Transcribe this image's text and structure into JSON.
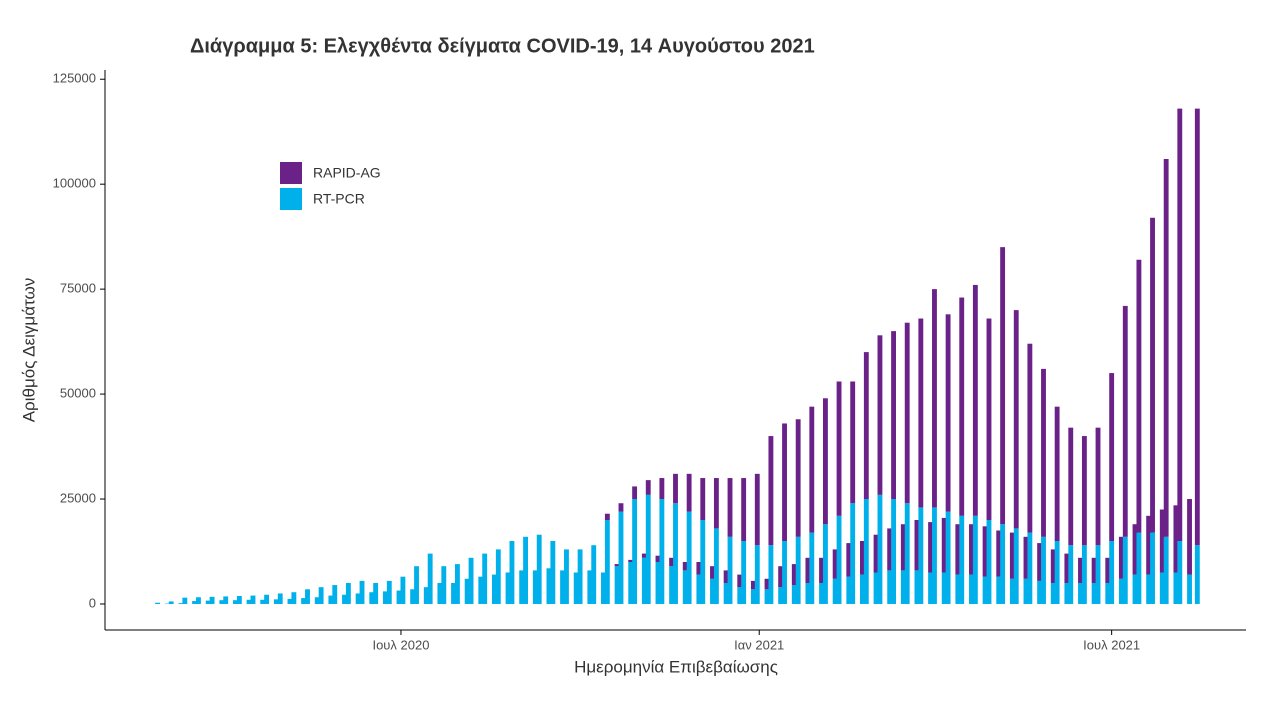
{
  "chart_data": {
    "type": "stacked_bar",
    "title": "Διάγραμμα 5: Ελεγχθέντα δείγματα COVID-19, 14 Αυγούστου 2021",
    "x_label": "Ημερομηνία Επιβεβαίωσης",
    "y_label": "Αριθμός Δειγμάτων",
    "xlim": [
      30,
      616
    ],
    "xticks": [
      {
        "value": 182,
        "label": "Ιουλ 2020"
      },
      {
        "value": 366,
        "label": "Ιαν 2021"
      },
      {
        "value": 547,
        "label": "Ιουλ 2021"
      }
    ],
    "ylim": [
      -6200,
      127200
    ],
    "yticks": [
      0,
      25000,
      50000,
      75000,
      100000,
      125000
    ],
    "legend": "upper left",
    "x": [
      57,
      62,
      64,
      69,
      71,
      76,
      78,
      83,
      85,
      90,
      92,
      97,
      99,
      104,
      106,
      111,
      113,
      118,
      120,
      125,
      127,
      132,
      134,
      139,
      141,
      146,
      148,
      153,
      155,
      160,
      162,
      167,
      169,
      174,
      176,
      181,
      183,
      188,
      190,
      195,
      197,
      202,
      204,
      209,
      211,
      216,
      218,
      223,
      225,
      230,
      232,
      237,
      239,
      244,
      246,
      251,
      253,
      258,
      260,
      265,
      267,
      272,
      274,
      279,
      281,
      286,
      288,
      293,
      295,
      300,
      302,
      307,
      309,
      314,
      316,
      321,
      323,
      328,
      330,
      335,
      337,
      342,
      344,
      349,
      351,
      356,
      358,
      363,
      365,
      370,
      372,
      377,
      379,
      384,
      386,
      391,
      393,
      398,
      400,
      405,
      407,
      412,
      414,
      419,
      421,
      426,
      428,
      433,
      435,
      440,
      442,
      447,
      449,
      454,
      456,
      461,
      463,
      468,
      470,
      475,
      477,
      482,
      484,
      489,
      491,
      496,
      498,
      503,
      505,
      510,
      512,
      517,
      519,
      524,
      526,
      531,
      533,
      538,
      540,
      545,
      547,
      552,
      554,
      559,
      561,
      566,
      568,
      573,
      575,
      580,
      582,
      587,
      591
    ],
    "series": [
      {
        "name": "RT-PCR",
        "color": "#00b0eb",
        "values": [
          300,
          100,
          600,
          200,
          1500,
          700,
          1600,
          800,
          1700,
          900,
          1800,
          900,
          1900,
          1000,
          2000,
          1000,
          2200,
          1100,
          2500,
          1200,
          2800,
          1400,
          3500,
          1600,
          4000,
          2000,
          4500,
          2200,
          5000,
          2500,
          5500,
          2800,
          5000,
          3000,
          5500,
          3200,
          6500,
          3500,
          9000,
          4000,
          12000,
          5000,
          9000,
          5000,
          9500,
          6000,
          11000,
          6500,
          12000,
          7000,
          13000,
          7500,
          15000,
          8000,
          16000,
          8000,
          16500,
          8500,
          15000,
          8000,
          13000,
          7500,
          13000,
          8000,
          14000,
          7500,
          20000,
          9000,
          22000,
          10000,
          25000,
          11000,
          26000,
          10000,
          25000,
          9000,
          24000,
          8000,
          22000,
          7000,
          20000,
          6000,
          18000,
          5000,
          16000,
          4000,
          15000,
          3500,
          14000,
          3500,
          14000,
          4000,
          15000,
          4500,
          16000,
          5000,
          17000,
          5000,
          19000,
          6000,
          21000,
          6500,
          24000,
          7000,
          25000,
          7500,
          26000,
          8000,
          25000,
          8000,
          24000,
          8000,
          23000,
          7500,
          23000,
          7500,
          22000,
          7000,
          21000,
          7000,
          21000,
          6500,
          20000,
          6500,
          19000,
          6000,
          18000,
          6000,
          17000,
          5500,
          16000,
          5000,
          15000,
          5000,
          14000,
          5000,
          14000,
          5000,
          14000,
          5000,
          15000,
          6000,
          16000,
          7000,
          17000,
          7000,
          17000,
          7500,
          16000,
          7500,
          15000,
          7000,
          14000
        ]
      },
      {
        "name": "RAPID-AG",
        "color": "#6a2289",
        "values": [
          0,
          0,
          0,
          0,
          0,
          0,
          0,
          0,
          0,
          0,
          0,
          0,
          0,
          0,
          0,
          0,
          0,
          0,
          0,
          0,
          0,
          0,
          0,
          0,
          0,
          0,
          0,
          0,
          0,
          0,
          0,
          0,
          0,
          0,
          0,
          0,
          0,
          0,
          0,
          0,
          0,
          0,
          0,
          0,
          0,
          0,
          0,
          0,
          0,
          0,
          0,
          0,
          0,
          0,
          0,
          0,
          0,
          0,
          0,
          0,
          0,
          0,
          0,
          0,
          0,
          0,
          1500,
          500,
          2000,
          500,
          3000,
          1000,
          3500,
          1500,
          5000,
          2000,
          7000,
          2000,
          9000,
          3000,
          10000,
          3000,
          12000,
          3000,
          14000,
          3000,
          15000,
          2000,
          17000,
          2500,
          26000,
          5000,
          28000,
          5000,
          28000,
          6000,
          30000,
          6000,
          30000,
          7000,
          32000,
          8000,
          29000,
          8000,
          35000,
          9000,
          38000,
          10000,
          40000,
          11000,
          43000,
          12000,
          45000,
          12000,
          52000,
          13000,
          47000,
          12000,
          52000,
          12000,
          55000,
          12000,
          48000,
          11000,
          66000,
          11000,
          52000,
          10000,
          45000,
          9000,
          40000,
          8000,
          32000,
          7000,
          28000,
          6000,
          26000,
          6000,
          28000,
          6000,
          40000,
          10000,
          55000,
          12000,
          65000,
          14000,
          75000,
          15000,
          90000,
          16000,
          103000,
          18000,
          104000
        ]
      }
    ]
  }
}
